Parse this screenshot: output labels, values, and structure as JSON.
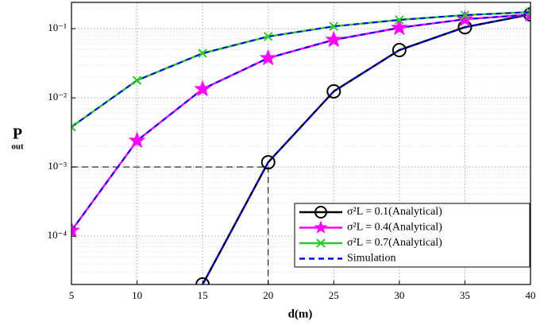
{
  "chart_data": {
    "type": "line",
    "log_y": true,
    "grid": true,
    "x": [
      5,
      10,
      15,
      20,
      25,
      30,
      35,
      40
    ],
    "xlim": [
      5,
      40
    ],
    "xticks": [
      5,
      10,
      15,
      20,
      25,
      30,
      35,
      40
    ],
    "ylim": [
      2e-05,
      0.24
    ],
    "yticks": [
      {
        "value": 0.0001,
        "label": "10⁻⁴"
      },
      {
        "value": 0.001,
        "label": "10⁻³"
      },
      {
        "value": 0.01,
        "label": "10⁻²"
      },
      {
        "value": 0.1,
        "label": "10⁻¹"
      }
    ],
    "xlabel": "d(m)",
    "ylabel": "P",
    "ylabel_sub": "out",
    "legend_position": "lower right",
    "series": [
      {
        "name": "σ²L = 0.1(Analytical)",
        "color": "#000000",
        "marker": "circle",
        "values": [
          null,
          null,
          2e-05,
          0.00117,
          0.0124,
          0.049,
          0.105,
          0.161
        ]
      },
      {
        "name": "σ²L = 0.4(Analytical)",
        "color": "#ff00ff",
        "marker": "star",
        "values": [
          0.00012,
          0.0024,
          0.0134,
          0.0376,
          0.069,
          0.103,
          0.137,
          0.16
        ]
      },
      {
        "name": "σ²L = 0.7(Analytical)",
        "color": "#22cc22",
        "marker": "x",
        "values": [
          0.0038,
          0.0179,
          0.044,
          0.077,
          0.108,
          0.134,
          0.157,
          0.174
        ]
      }
    ],
    "simulation": {
      "name": "Simulation",
      "color": "#0000ff"
    },
    "reference": {
      "x": 20,
      "y": 0.001
    }
  }
}
